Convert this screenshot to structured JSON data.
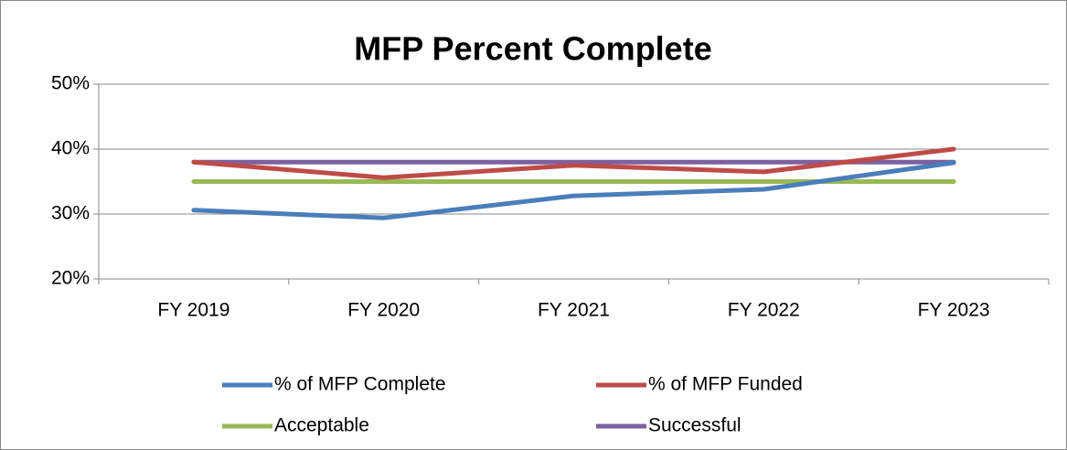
{
  "chart_data": {
    "type": "line",
    "title": "MFP Percent Complete",
    "categories": [
      "FY 2019",
      "FY 2020",
      "FY 2021",
      "FY 2022",
      "FY 2023"
    ],
    "series": [
      {
        "name": "% of MFP Complete",
        "color": "#4a7ebb",
        "values": [
          30.6,
          29.4,
          32.8,
          33.8,
          37.9
        ]
      },
      {
        "name": "% of MFP Funded",
        "color": "#be4b48",
        "values": [
          38.0,
          35.6,
          37.5,
          36.5,
          40.0
        ]
      },
      {
        "name": "Acceptable",
        "color": "#98b954",
        "values": [
          35,
          35,
          35,
          35,
          35
        ]
      },
      {
        "name": "Successful",
        "color": "#7d60a0",
        "values": [
          38,
          38,
          38,
          38,
          38
        ]
      }
    ],
    "ylim": [
      20,
      50
    ],
    "yticks": [
      {
        "value": 20,
        "label": "20%"
      },
      {
        "value": 30,
        "label": "30%"
      },
      {
        "value": 40,
        "label": "40%"
      },
      {
        "value": 50,
        "label": "50%"
      }
    ],
    "grid": true,
    "legend": "bottom"
  }
}
